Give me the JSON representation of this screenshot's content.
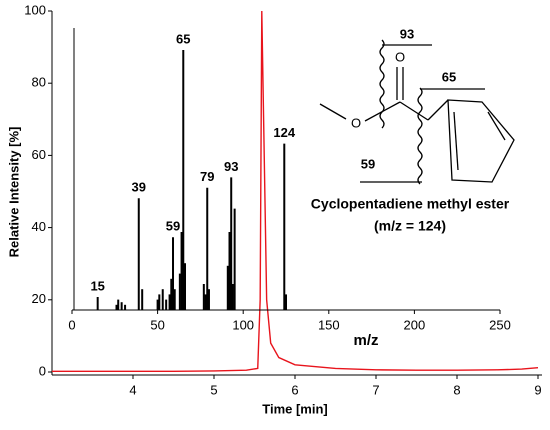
{
  "chart_data": [
    {
      "type": "line",
      "x_label": "Time [min]",
      "y_label": "Relative Intensity [%]",
      "xlim": [
        3,
        9
      ],
      "ylim": [
        0,
        100
      ],
      "xticks": [
        4,
        5,
        6,
        7,
        8,
        9
      ],
      "yticks": [
        0,
        20,
        40,
        60,
        80,
        100
      ],
      "series": [
        {
          "color": "#e8141c",
          "x": [
            3.0,
            3.5,
            4.0,
            4.5,
            5.0,
            5.4,
            5.54,
            5.57,
            5.59,
            5.62,
            5.65,
            5.7,
            5.8,
            6.0,
            6.5,
            7.0,
            7.5,
            8.0,
            8.5,
            8.8,
            9.0
          ],
          "values": [
            0.2,
            0.2,
            0.2,
            0.2,
            0.3,
            0.5,
            1,
            20,
            100,
            60,
            20,
            8,
            4,
            2,
            1,
            0.6,
            0.5,
            0.5,
            0.6,
            0.8,
            1.2
          ]
        }
      ]
    },
    {
      "type": "bar",
      "x_label": "m/z",
      "xlim": [
        0,
        250
      ],
      "ylim": [
        0,
        100
      ],
      "xticks": [
        0,
        50,
        100,
        150,
        200,
        250
      ],
      "series": [
        {
          "color": "#000000",
          "show_labels": true,
          "x": [
            15,
            39,
            59,
            65,
            79,
            93,
            124
          ],
          "values": [
            5,
            43,
            28,
            100,
            47,
            51,
            64
          ]
        },
        {
          "color": "#000000",
          "x": [
            26,
            27,
            29,
            31,
            41,
            50,
            51,
            53,
            55,
            57,
            58,
            60,
            63,
            64,
            66,
            77,
            78,
            80,
            91,
            92,
            94,
            95,
            125
          ],
          "values": [
            2,
            4,
            3,
            2,
            8,
            4,
            6,
            8,
            4,
            6,
            12,
            8,
            14,
            30,
            18,
            10,
            6,
            8,
            17,
            30,
            10,
            39,
            6
          ]
        }
      ]
    }
  ],
  "structure": {
    "name": "Cyclopentadiene methyl ester",
    "note": "(m/z = 124)",
    "oxygen_1": "O",
    "oxygen_2": "O",
    "fragments": [
      "93",
      "65",
      "59"
    ]
  }
}
